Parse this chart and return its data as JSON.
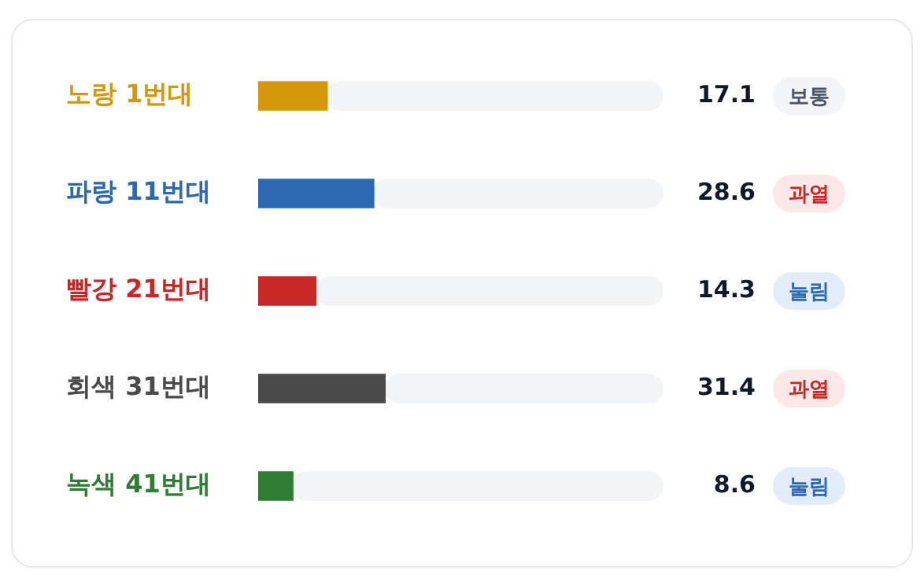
{
  "chart_data": {
    "type": "bar",
    "orientation": "horizontal",
    "stacked": true,
    "categories": [
      "노랑 1번대",
      "파랑 11번대",
      "빨강 21번대",
      "회색 31번대",
      "녹색 41번대"
    ],
    "series": [
      {
        "colors": [
          "#d4980a",
          "#2f68b2",
          "#c62828",
          "#4a4a4a",
          "#2e7d32"
        ],
        "values": [
          17.1,
          28.6,
          14.3,
          31.4,
          8.6
        ],
        "value_labels": [
          "17.1",
          "28.6",
          "14.3",
          "31.4",
          "8.6"
        ]
      },
      {
        "color": "#f3f4f6",
        "values": [
          82.9,
          71.4,
          85.7,
          68.6,
          91.4
        ]
      }
    ],
    "xlim": [
      0,
      100
    ],
    "tick_labels": "y",
    "grid": false,
    "legend": false,
    "annotations": [
      "보통",
      "과열",
      "눌림",
      "과열",
      "눌림"
    ]
  }
}
